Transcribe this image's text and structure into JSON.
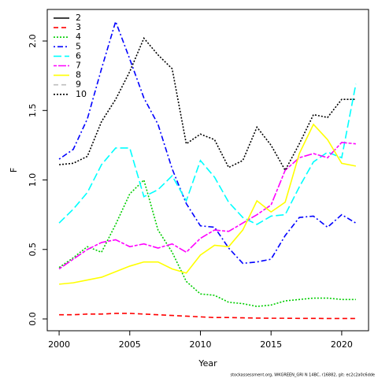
{
  "chart_data": {
    "type": "line",
    "xlabel": "Year",
    "ylabel": "F",
    "footer": "stockassessment.org, WKGREEN_GRI N 14BC, r16882, git: ec2c2a0c6dde",
    "x": [
      2000,
      2001,
      2002,
      2003,
      2004,
      2005,
      2006,
      2007,
      2008,
      2009,
      2010,
      2011,
      2012,
      2013,
      2014,
      2015,
      2016,
      2017,
      2018,
      2019,
      2020,
      2021
    ],
    "xlim": [
      1999.16,
      2021.9
    ],
    "xticks": [
      2000,
      2005,
      2010,
      2015,
      2020
    ],
    "ylim": [
      -0.085,
      2.227
    ],
    "yticks": [
      {
        "value": 0,
        "label": "0.0"
      },
      0.5,
      {
        "value": 1,
        "label": "1.0"
      },
      1.5,
      {
        "value": 2,
        "label": "2.0"
      }
    ],
    "legend": "upper left",
    "series": [
      {
        "name": "2",
        "color": "#000000",
        "dash": "none",
        "values": [
          null,
          null,
          null,
          null,
          null,
          null,
          null,
          null,
          null,
          null,
          null,
          null,
          null,
          null,
          null,
          null,
          null,
          null,
          null,
          null,
          null,
          null
        ]
      },
      {
        "name": "3",
        "color": "#ff0000",
        "dash": "6,4",
        "values": [
          0.03,
          0.03,
          0.035,
          0.035,
          0.04,
          0.04,
          0.035,
          0.03,
          0.025,
          0.02,
          0.015,
          0.01,
          0.01,
          0.008,
          0.006,
          0.005,
          0.005,
          0.004,
          0.004,
          0.003,
          0.003,
          0.003
        ]
      },
      {
        "name": "4",
        "color": "#00cd00",
        "dash": "2,2",
        "values": [
          0.37,
          0.44,
          0.52,
          0.48,
          0.68,
          0.9,
          1.0,
          0.64,
          0.48,
          0.27,
          0.18,
          0.17,
          0.12,
          0.11,
          0.09,
          0.1,
          0.13,
          0.14,
          0.15,
          0.15,
          0.14,
          0.14
        ]
      },
      {
        "name": "5",
        "color": "#0000ff",
        "dash": "2,3,7,3",
        "values": [
          1.15,
          1.22,
          1.44,
          1.8,
          2.14,
          1.87,
          1.59,
          1.4,
          1.08,
          0.83,
          0.67,
          0.66,
          0.51,
          0.4,
          0.41,
          0.43,
          0.6,
          0.73,
          0.74,
          0.66,
          0.75,
          0.69
        ]
      },
      {
        "name": "6",
        "color": "#00ffff",
        "dash": "10,4",
        "values": [
          0.69,
          0.79,
          0.91,
          1.11,
          1.23,
          1.23,
          0.88,
          0.93,
          1.03,
          0.85,
          1.14,
          1.02,
          0.84,
          0.73,
          0.68,
          0.74,
          0.75,
          0.95,
          1.13,
          1.2,
          1.16,
          1.69
        ]
      },
      {
        "name": "7",
        "color": "#ff00ff",
        "dash": "4,2,10,2",
        "values": [
          0.36,
          0.43,
          0.5,
          0.55,
          0.57,
          0.52,
          0.54,
          0.51,
          0.54,
          0.48,
          0.58,
          0.64,
          0.63,
          0.69,
          0.75,
          0.82,
          1.07,
          1.16,
          1.19,
          1.16,
          1.27,
          1.26
        ]
      },
      {
        "name": "8",
        "color": "#ffff00",
        "dash": "none",
        "values": [
          0.25,
          0.26,
          0.28,
          0.3,
          0.34,
          0.38,
          0.41,
          0.41,
          0.36,
          0.33,
          0.46,
          0.53,
          0.52,
          0.64,
          0.85,
          0.77,
          0.84,
          1.19,
          1.4,
          1.29,
          1.12,
          1.1
        ]
      },
      {
        "name": "9",
        "color": "#bebebe",
        "dash": "6,4",
        "values": [
          null,
          null,
          null,
          null,
          null,
          null,
          null,
          null,
          null,
          null,
          null,
          null,
          null,
          null,
          null,
          null,
          null,
          null,
          null,
          null,
          null,
          null
        ]
      },
      {
        "name": "10",
        "color": "#000000",
        "dash": "2,2",
        "values": [
          1.11,
          1.12,
          1.17,
          1.42,
          1.58,
          1.78,
          2.02,
          1.9,
          1.8,
          1.26,
          1.33,
          1.29,
          1.09,
          1.14,
          1.38,
          1.25,
          1.07,
          1.26,
          1.47,
          1.45,
          1.58,
          1.58
        ]
      }
    ]
  }
}
